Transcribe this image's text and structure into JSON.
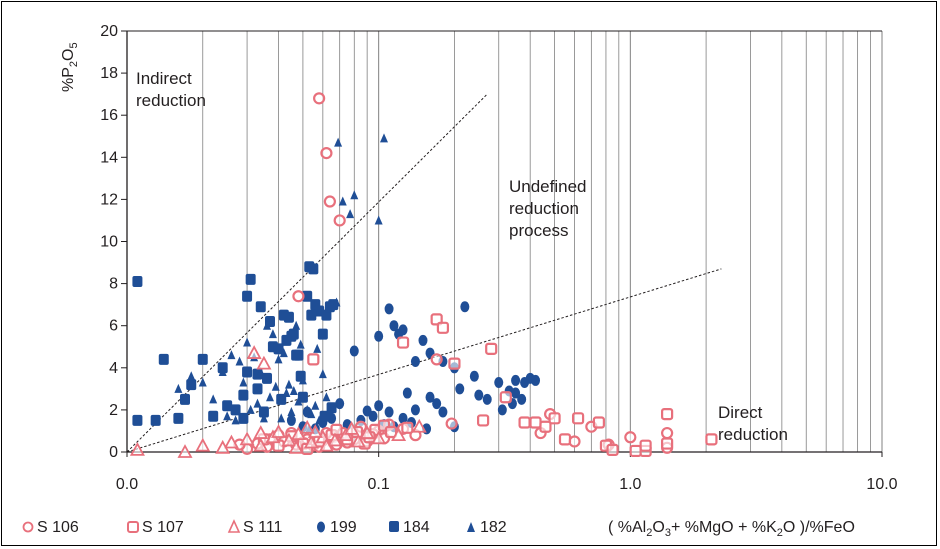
{
  "chart_data": {
    "type": "scatter",
    "x_scale": "log",
    "xlim": [
      0.0,
      10.0
    ],
    "ylim": [
      0,
      20
    ],
    "x_ticks": [
      "0.0",
      "0.1",
      "1.0",
      "10.0"
    ],
    "y_ticks": [
      "0",
      "2",
      "4",
      "6",
      "8",
      "10",
      "12",
      "14",
      "16",
      "18",
      "20"
    ],
    "ylabel": {
      "base": "%P",
      "sub1": "2",
      "mid": "O",
      "sub2": "5"
    },
    "xlabel": "( %Al2O3+ %MgO + %K2O )/%FeO",
    "xlabel_parts": [
      {
        "t": "( %Al",
        "sub": false
      },
      {
        "t": "2",
        "sub": true
      },
      {
        "t": "O",
        "sub": false
      },
      {
        "t": "3",
        "sub": true
      },
      {
        "t": "+ %MgO + %K",
        "sub": false
      },
      {
        "t": "2",
        "sub": true
      },
      {
        "t": "O )/%FeO",
        "sub": false
      }
    ],
    "grid": "vertical",
    "annotations": [
      {
        "lines": [
          "Indirect",
          "reduction"
        ]
      },
      {
        "lines": [
          "Undefined",
          "reduction",
          "process"
        ]
      },
      {
        "lines": [
          "Direct",
          "reduction"
        ]
      }
    ],
    "boundary_lines": [
      {
        "x": [
          0.01,
          0.27
        ],
        "y": [
          0,
          17
        ]
      },
      {
        "x": [
          0.01,
          2.3
        ],
        "y": [
          0,
          8.7
        ]
      }
    ],
    "series": [
      {
        "name": "S 106",
        "marker": "circle-open",
        "color": "#e8707c",
        "points": [
          [
            0.058,
            16.8
          ],
          [
            0.062,
            14.2
          ],
          [
            0.064,
            11.9
          ],
          [
            0.07,
            11.0
          ],
          [
            0.048,
            7.4
          ],
          [
            0.17,
            4.4
          ],
          [
            0.195,
            1.35
          ],
          [
            0.03,
            0.15
          ],
          [
            0.033,
            0.4
          ],
          [
            0.037,
            0.6
          ],
          [
            0.04,
            0.8
          ],
          [
            0.045,
            0.9
          ],
          [
            0.05,
            0.45
          ],
          [
            0.055,
            0.3
          ],
          [
            0.06,
            0.55
          ],
          [
            0.066,
            0.7
          ],
          [
            0.072,
            0.9
          ],
          [
            0.08,
            0.6
          ],
          [
            0.09,
            0.5
          ],
          [
            0.1,
            1.0
          ],
          [
            0.11,
            1.3
          ],
          [
            0.125,
            1.1
          ],
          [
            0.14,
            0.8
          ],
          [
            0.058,
            0.25
          ],
          [
            0.052,
            0.6
          ],
          [
            0.047,
            0.35
          ],
          [
            0.042,
            0.5
          ],
          [
            0.036,
            0.25
          ],
          [
            0.085,
            1.2
          ],
          [
            0.095,
            0.85
          ],
          [
            0.105,
            0.65
          ],
          [
            0.075,
            0.45
          ],
          [
            0.068,
            0.35
          ],
          [
            0.44,
            0.9
          ],
          [
            0.6,
            0.5
          ],
          [
            0.82,
            0.35
          ],
          [
            1.0,
            0.7
          ],
          [
            1.4,
            0.9
          ],
          [
            1.4,
            0.2
          ],
          [
            0.48,
            1.8
          ],
          [
            0.7,
            1.2
          ],
          [
            0.028,
            0.35
          ],
          [
            0.062,
            0.9
          ]
        ]
      },
      {
        "name": "S 107",
        "marker": "square-open",
        "color": "#e8707c",
        "points": [
          [
            0.17,
            6.3
          ],
          [
            0.18,
            5.9
          ],
          [
            0.125,
            5.2
          ],
          [
            0.055,
            4.4
          ],
          [
            0.2,
            4.2
          ],
          [
            0.28,
            4.9
          ],
          [
            0.32,
            2.6
          ],
          [
            0.26,
            1.5
          ],
          [
            0.38,
            1.4
          ],
          [
            0.42,
            1.4
          ],
          [
            0.5,
            1.6
          ],
          [
            0.62,
            1.6
          ],
          [
            0.75,
            1.4
          ],
          [
            0.8,
            0.3
          ],
          [
            0.85,
            0.1
          ],
          [
            1.05,
            0.05
          ],
          [
            1.15,
            0.05
          ],
          [
            1.15,
            0.3
          ],
          [
            1.4,
            1.8
          ],
          [
            1.4,
            0.4
          ],
          [
            2.1,
            0.6
          ],
          [
            0.46,
            1.2
          ],
          [
            0.55,
            0.6
          ],
          [
            0.035,
            0.6
          ],
          [
            0.04,
            0.3
          ],
          [
            0.045,
            0.75
          ],
          [
            0.05,
            0.4
          ],
          [
            0.058,
            0.5
          ],
          [
            0.065,
            0.8
          ],
          [
            0.075,
            0.6
          ],
          [
            0.082,
            0.95
          ],
          [
            0.088,
            0.4
          ],
          [
            0.097,
            1.05
          ],
          [
            0.105,
            1.25
          ],
          [
            0.112,
            0.95
          ],
          [
            0.13,
            1.15
          ],
          [
            0.052,
            0.15
          ],
          [
            0.068,
            1.05
          ],
          [
            0.092,
            0.7
          ]
        ]
      },
      {
        "name": "S 111",
        "marker": "triangle-open",
        "color": "#e8707c",
        "points": [
          [
            0.011,
            0.1
          ],
          [
            0.017,
            0.0
          ],
          [
            0.02,
            0.3
          ],
          [
            0.026,
            0.45
          ],
          [
            0.03,
            0.6
          ],
          [
            0.034,
            0.9
          ],
          [
            0.038,
            0.7
          ],
          [
            0.044,
            0.55
          ],
          [
            0.048,
            0.85
          ],
          [
            0.054,
            0.45
          ],
          [
            0.06,
            0.7
          ],
          [
            0.067,
            0.55
          ],
          [
            0.074,
            0.8
          ],
          [
            0.083,
            0.5
          ],
          [
            0.09,
            0.9
          ],
          [
            0.1,
            0.65
          ],
          [
            0.12,
            0.8
          ],
          [
            0.145,
            1.2
          ],
          [
            0.032,
            4.7
          ],
          [
            0.035,
            4.2
          ],
          [
            0.062,
            0.3
          ],
          [
            0.047,
            0.2
          ],
          [
            0.04,
            0.95
          ],
          [
            0.056,
            0.95
          ],
          [
            0.078,
            1.1
          ],
          [
            0.052,
            1.15
          ],
          [
            0.034,
            0.3
          ],
          [
            0.024,
            0.2
          ]
        ]
      },
      {
        "name": "199",
        "marker": "circle-filled",
        "color": "#1f4e96",
        "points": [
          [
            0.11,
            6.8
          ],
          [
            0.115,
            6.0
          ],
          [
            0.12,
            5.6
          ],
          [
            0.125,
            5.8
          ],
          [
            0.1,
            5.5
          ],
          [
            0.15,
            5.3
          ],
          [
            0.22,
            6.9
          ],
          [
            0.08,
            4.8
          ],
          [
            0.16,
            4.7
          ],
          [
            0.14,
            4.3
          ],
          [
            0.18,
            4.3
          ],
          [
            0.2,
            4.0
          ],
          [
            0.13,
            2.8
          ],
          [
            0.16,
            2.6
          ],
          [
            0.17,
            2.3
          ],
          [
            0.11,
            1.9
          ],
          [
            0.09,
            1.95
          ],
          [
            0.07,
            2.3
          ],
          [
            0.06,
            1.4
          ],
          [
            0.05,
            1.2
          ],
          [
            0.065,
            1.6
          ],
          [
            0.085,
            1.5
          ],
          [
            0.095,
            1.7
          ],
          [
            0.105,
            1.3
          ],
          [
            0.125,
            1.6
          ],
          [
            0.14,
            2.0
          ],
          [
            0.18,
            1.9
          ],
          [
            0.24,
            3.6
          ],
          [
            0.3,
            3.3
          ],
          [
            0.33,
            2.9
          ],
          [
            0.35,
            2.8
          ],
          [
            0.38,
            3.3
          ],
          [
            0.4,
            3.5
          ],
          [
            0.37,
            2.5
          ],
          [
            0.34,
            2.3
          ],
          [
            0.31,
            2.0
          ],
          [
            0.42,
            3.4
          ],
          [
            0.25,
            2.7
          ],
          [
            0.21,
            3.0
          ],
          [
            0.27,
            2.5
          ],
          [
            0.075,
            1.3
          ],
          [
            0.056,
            1.1
          ],
          [
            0.045,
            1.5
          ],
          [
            0.052,
            1.9
          ],
          [
            0.1,
            2.2
          ],
          [
            0.115,
            1.2
          ],
          [
            0.135,
            1.4
          ],
          [
            0.155,
            1.1
          ],
          [
            0.2,
            1.2
          ],
          [
            0.35,
            3.4
          ]
        ]
      },
      {
        "name": "184",
        "marker": "square-filled",
        "color": "#1f4e96",
        "points": [
          [
            0.011,
            8.1
          ],
          [
            0.011,
            1.5
          ],
          [
            0.013,
            1.5
          ],
          [
            0.014,
            4.4
          ],
          [
            0.016,
            1.6
          ],
          [
            0.017,
            2.5
          ],
          [
            0.018,
            3.2
          ],
          [
            0.02,
            4.4
          ],
          [
            0.022,
            1.7
          ],
          [
            0.024,
            4.0
          ],
          [
            0.025,
            2.2
          ],
          [
            0.027,
            2.0
          ],
          [
            0.029,
            1.6
          ],
          [
            0.03,
            7.4
          ],
          [
            0.031,
            8.2
          ],
          [
            0.033,
            3.7
          ],
          [
            0.034,
            6.9
          ],
          [
            0.036,
            3.5
          ],
          [
            0.037,
            6.2
          ],
          [
            0.038,
            5.0
          ],
          [
            0.04,
            4.9
          ],
          [
            0.041,
            2.5
          ],
          [
            0.042,
            6.5
          ],
          [
            0.044,
            6.4
          ],
          [
            0.046,
            5.6
          ],
          [
            0.048,
            4.6
          ],
          [
            0.05,
            2.6
          ],
          [
            0.052,
            7.4
          ],
          [
            0.053,
            8.8
          ],
          [
            0.055,
            8.7
          ],
          [
            0.056,
            7.0
          ],
          [
            0.058,
            6.7
          ],
          [
            0.06,
            5.6
          ],
          [
            0.062,
            6.5
          ],
          [
            0.064,
            6.9
          ],
          [
            0.03,
            3.8
          ],
          [
            0.033,
            3.0
          ],
          [
            0.045,
            5.5
          ],
          [
            0.054,
            6.5
          ],
          [
            0.047,
            4.6
          ],
          [
            0.035,
            1.9
          ],
          [
            0.066,
            7.0
          ],
          [
            0.061,
            1.7
          ],
          [
            0.065,
            2.1
          ],
          [
            0.029,
            2.7
          ],
          [
            0.049,
            3.6
          ],
          [
            0.043,
            5.3
          ]
        ]
      },
      {
        "name": "182",
        "marker": "triangle-filled",
        "color": "#1f4e96",
        "points": [
          [
            0.069,
            14.7
          ],
          [
            0.105,
            14.9
          ],
          [
            0.08,
            12.2
          ],
          [
            0.077,
            11.3
          ],
          [
            0.072,
            11.9
          ],
          [
            0.1,
            11.0
          ],
          [
            0.068,
            7.1
          ],
          [
            0.016,
            3.0
          ],
          [
            0.018,
            3.6
          ],
          [
            0.02,
            3.3
          ],
          [
            0.022,
            2.5
          ],
          [
            0.024,
            3.8
          ],
          [
            0.026,
            4.6
          ],
          [
            0.028,
            4.3
          ],
          [
            0.03,
            5.2
          ],
          [
            0.032,
            4.5
          ],
          [
            0.034,
            3.8
          ],
          [
            0.036,
            6.0
          ],
          [
            0.038,
            5.6
          ],
          [
            0.04,
            4.4
          ],
          [
            0.042,
            4.7
          ],
          [
            0.044,
            3.2
          ],
          [
            0.046,
            2.9
          ],
          [
            0.048,
            2.4
          ],
          [
            0.05,
            3.4
          ],
          [
            0.052,
            2.0
          ],
          [
            0.054,
            1.8
          ],
          [
            0.056,
            2.2
          ],
          [
            0.058,
            1.5
          ],
          [
            0.06,
            3.7
          ],
          [
            0.062,
            2.6
          ],
          [
            0.064,
            1.9
          ],
          [
            0.047,
            6.0
          ],
          [
            0.043,
            2.8
          ],
          [
            0.037,
            2.6
          ],
          [
            0.041,
            1.6
          ],
          [
            0.031,
            2.0
          ],
          [
            0.027,
            1.5
          ],
          [
            0.025,
            1.7
          ],
          [
            0.035,
            1.6
          ],
          [
            0.045,
            1.9
          ],
          [
            0.053,
            1.1
          ],
          [
            0.033,
            2.3
          ],
          [
            0.039,
            3.1
          ],
          [
            0.029,
            3.3
          ],
          [
            0.049,
            5.1
          ],
          [
            0.057,
            4.9
          ]
        ]
      }
    ]
  }
}
